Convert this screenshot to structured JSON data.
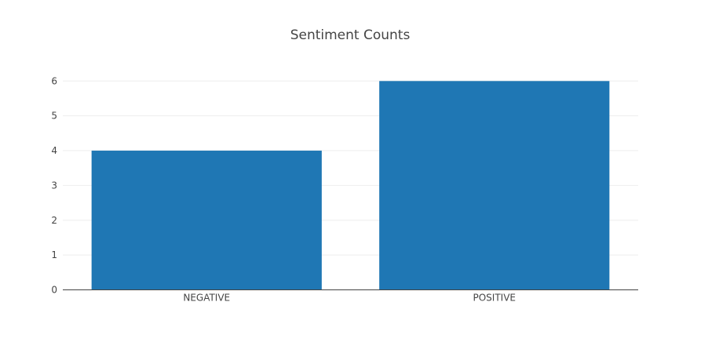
{
  "chart_data": {
    "type": "bar",
    "title": "Sentiment Counts",
    "categories": [
      "NEGATIVE",
      "POSITIVE"
    ],
    "values": [
      4,
      6
    ],
    "xlabel": "",
    "ylabel": "",
    "ylim": [
      0,
      6.3
    ],
    "yticks": [
      "0",
      "1",
      "2",
      "3",
      "4",
      "5",
      "6"
    ],
    "bar_color": "#1f77b4",
    "grid": true,
    "legend": "none"
  }
}
